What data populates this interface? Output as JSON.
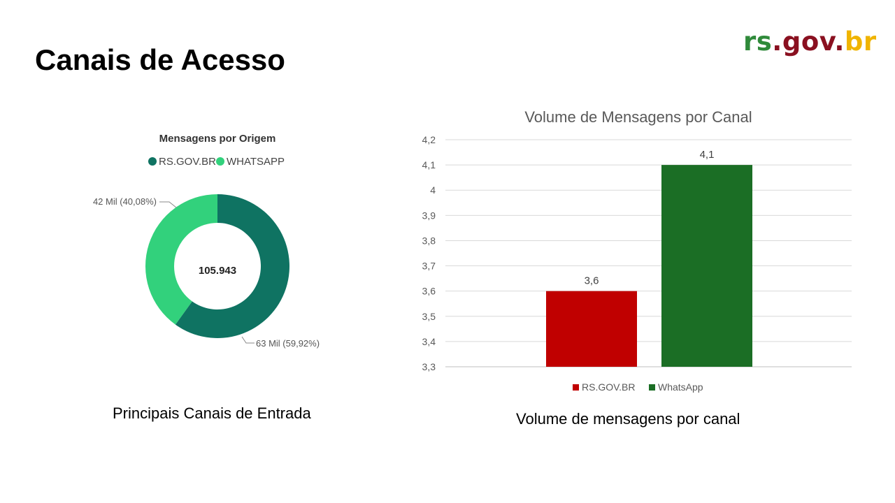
{
  "page": {
    "title": "Canais de Acesso",
    "logo": {
      "part1": "rs",
      "part2": ".gov.",
      "part3": "br"
    },
    "caption_left": "Principais Canais de Entrada",
    "caption_right": "Volume de mensagens por canal"
  },
  "colors": {
    "rsgov_donut": "#0f7362",
    "whatsapp_donut": "#32d17c",
    "rsgov_bar": "#c00000",
    "whatsapp_bar": "#1b6e25"
  },
  "chart_data": [
    {
      "type": "pie",
      "title": "Mensagens por Origem",
      "legend_position": "top",
      "center_label": "105.943",
      "slices": [
        {
          "name": "RS.GOV.BR",
          "value": 63,
          "percent": 59.92,
          "label": "63 Mil (59,92%)",
          "color": "#0f7362"
        },
        {
          "name": "WHATSAPP",
          "value": 42,
          "percent": 40.08,
          "label": "42 Mil (40,08%)",
          "color": "#32d17c"
        }
      ]
    },
    {
      "type": "bar",
      "title": "Volume de Mensagens por Canal",
      "legend_position": "bottom",
      "grid": true,
      "ylim": [
        3.3,
        4.2
      ],
      "yticks": [
        "3,3",
        "3,4",
        "3,5",
        "3,6",
        "3,7",
        "3,8",
        "3,9",
        "4",
        "4,1",
        "4,2"
      ],
      "series": [
        {
          "name": "RS.GOV.BR",
          "value": 3.6,
          "label": "3,6",
          "color": "#c00000"
        },
        {
          "name": "WhatsApp",
          "value": 4.1,
          "label": "4,1",
          "color": "#1b6e25"
        }
      ]
    }
  ]
}
